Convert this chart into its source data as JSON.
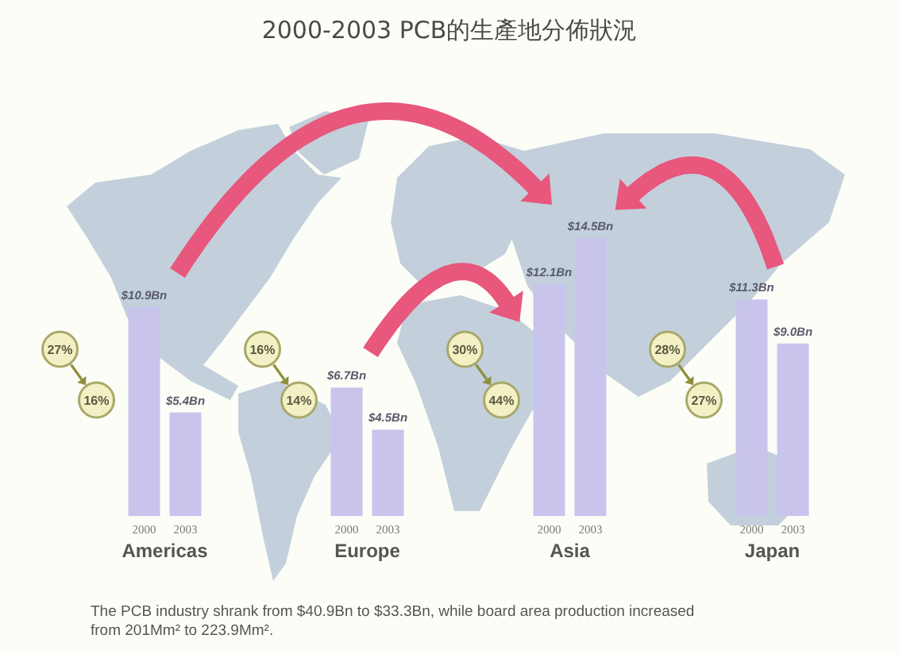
{
  "chart_data": {
    "type": "bar",
    "title": "2000-2003 PCB的生產地分佈狀況",
    "categories": [
      "Americas",
      "Europe",
      "Asia",
      "Japan"
    ],
    "series": [
      {
        "name": "2000",
        "color": "#c8c4ec",
        "values": [
          10.9,
          6.7,
          12.1,
          11.3
        ],
        "value_labels": [
          "$10.9Bn",
          "$6.7Bn",
          "$12.1Bn",
          "$11.3Bn"
        ]
      },
      {
        "name": "2003",
        "color": "#c8c4ec",
        "values": [
          5.4,
          4.5,
          14.5,
          9.0
        ],
        "value_labels": [
          "$5.4Bn",
          "$4.5Bn",
          "$14.5Bn",
          "$9.0Bn"
        ]
      }
    ],
    "annotations": [
      "27%",
      "16%",
      "16%",
      "14%",
      "30%",
      "44%",
      "28%",
      "27%",
      "The PCB industry shrank from $40.9Bn to $33.3Bn, while board area production increased from 201Mm² to 223.9Mm²."
    ]
  }
}
